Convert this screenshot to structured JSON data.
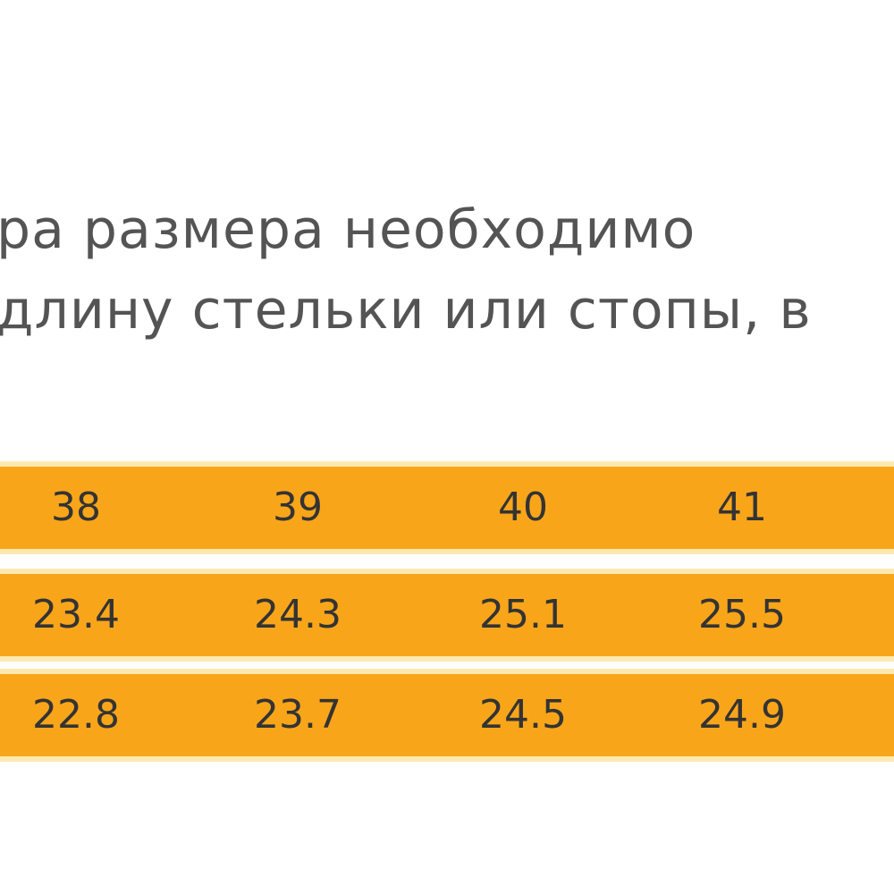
{
  "intro": {
    "lines": [
      "ра размера необходимо",
      "длину стельки или стопы, в"
    ]
  },
  "table": {
    "rows": [
      [
        "38",
        "39",
        "40",
        "41"
      ],
      [
        "23.4",
        "24.3",
        "25.1",
        "25.5"
      ],
      [
        "22.8",
        "23.7",
        "24.5",
        "24.9"
      ]
    ]
  }
}
